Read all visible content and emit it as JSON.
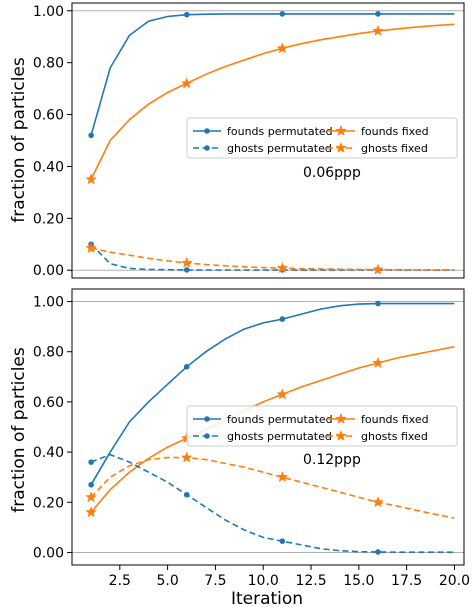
{
  "chart_data": [
    {
      "type": "line",
      "ylabel": "fraction of particles",
      "xlabel": "",
      "annotation": "0.06ppp",
      "xlim": [
        0.0,
        20.5
      ],
      "ylim": [
        -0.03,
        1.03
      ],
      "yticks": [
        0.0,
        0.2,
        0.4,
        0.6,
        0.8,
        1.0
      ],
      "ytick_labels": [
        "0.00",
        "0.20",
        "0.40",
        "0.60",
        "0.80",
        "1.00"
      ],
      "hlines": [
        0.0,
        1.0
      ],
      "grid": false,
      "legend": "center-right",
      "series": [
        {
          "name": "founds permutated",
          "color": "#1f77b4",
          "linestyle": "solid",
          "marker": "dot",
          "x": [
            1,
            2,
            3,
            4,
            5,
            6,
            7,
            8,
            9,
            10,
            11,
            12,
            13,
            14,
            15,
            16,
            17,
            18,
            19,
            20
          ],
          "y": [
            0.52,
            0.78,
            0.905,
            0.96,
            0.978,
            0.985,
            0.987,
            0.988,
            0.988,
            0.988,
            0.988,
            0.988,
            0.988,
            0.988,
            0.988,
            0.988,
            0.988,
            0.988,
            0.988,
            0.988
          ],
          "markers_at": [
            1,
            6,
            11,
            16
          ]
        },
        {
          "name": "founds fixed",
          "color": "#ff7f0e",
          "linestyle": "solid",
          "marker": "star",
          "x": [
            1,
            2,
            3,
            4,
            5,
            6,
            7,
            8,
            9,
            10,
            11,
            12,
            13,
            14,
            15,
            16,
            17,
            18,
            19,
            20
          ],
          "y": [
            0.35,
            0.5,
            0.58,
            0.64,
            0.685,
            0.72,
            0.755,
            0.785,
            0.81,
            0.835,
            0.855,
            0.873,
            0.888,
            0.9,
            0.912,
            0.922,
            0.93,
            0.937,
            0.943,
            0.948
          ],
          "markers_at": [
            1,
            6,
            11,
            16
          ]
        },
        {
          "name": "ghosts permutated",
          "color": "#1f77b4",
          "linestyle": "dashed",
          "marker": "dot",
          "x": [
            1,
            2,
            3,
            4,
            5,
            6,
            7,
            8,
            9,
            10,
            11,
            12,
            13,
            14,
            15,
            16,
            17,
            18,
            19,
            20
          ],
          "y": [
            0.1,
            0.025,
            0.007,
            0.003,
            0.002,
            0.001,
            0.001,
            0.001,
            0.001,
            0.001,
            0.001,
            0.001,
            0.001,
            0.001,
            0.001,
            0.001,
            0.001,
            0.001,
            0.001,
            0.001
          ],
          "markers_at": [
            1,
            6,
            11,
            16
          ]
        },
        {
          "name": "ghosts fixed",
          "color": "#ff7f0e",
          "linestyle": "dashed",
          "marker": "star",
          "x": [
            1,
            2,
            3,
            4,
            5,
            6,
            7,
            8,
            9,
            10,
            11,
            12,
            13,
            14,
            15,
            16,
            17,
            18,
            19,
            20
          ],
          "y": [
            0.085,
            0.07,
            0.058,
            0.046,
            0.036,
            0.028,
            0.022,
            0.017,
            0.013,
            0.01,
            0.008,
            0.006,
            0.005,
            0.004,
            0.003,
            0.002,
            0.002,
            0.001,
            0.001,
            0.001
          ],
          "markers_at": [
            1,
            6,
            11,
            16
          ]
        }
      ]
    },
    {
      "type": "line",
      "ylabel": "fraction of particles",
      "xlabel": "Iteration",
      "annotation": "0.12ppp",
      "xlim": [
        0.0,
        20.5
      ],
      "ylim": [
        -0.05,
        1.05
      ],
      "yticks": [
        0.0,
        0.2,
        0.4,
        0.6,
        0.8,
        1.0
      ],
      "ytick_labels": [
        "0.00",
        "0.20",
        "0.40",
        "0.60",
        "0.80",
        "1.00"
      ],
      "xticks": [
        2.5,
        5.0,
        7.5,
        10.0,
        12.5,
        15.0,
        17.5,
        20.0
      ],
      "xtick_labels": [
        "2.5",
        "5.0",
        "7.5",
        "10.0",
        "12.5",
        "15.0",
        "17.5",
        "20.0"
      ],
      "hlines": [
        0.0,
        1.0
      ],
      "grid": false,
      "legend": "center-right",
      "series": [
        {
          "name": "founds permutated",
          "color": "#1f77b4",
          "linestyle": "solid",
          "marker": "dot",
          "x": [
            1,
            2,
            3,
            4,
            5,
            6,
            7,
            8,
            9,
            10,
            11,
            12,
            13,
            14,
            15,
            16,
            17,
            18,
            19,
            20
          ],
          "y": [
            0.27,
            0.4,
            0.52,
            0.6,
            0.67,
            0.74,
            0.8,
            0.85,
            0.89,
            0.915,
            0.93,
            0.95,
            0.97,
            0.983,
            0.99,
            0.992,
            0.992,
            0.992,
            0.992,
            0.992
          ],
          "markers_at": [
            1,
            6,
            11,
            16
          ]
        },
        {
          "name": "founds fixed",
          "color": "#ff7f0e",
          "linestyle": "solid",
          "marker": "star",
          "x": [
            1,
            2,
            3,
            4,
            5,
            6,
            7,
            8,
            9,
            10,
            11,
            12,
            13,
            14,
            15,
            16,
            17,
            18,
            19,
            20
          ],
          "y": [
            0.16,
            0.25,
            0.32,
            0.375,
            0.42,
            0.455,
            0.49,
            0.525,
            0.565,
            0.6,
            0.63,
            0.66,
            0.685,
            0.71,
            0.735,
            0.755,
            0.775,
            0.79,
            0.805,
            0.82
          ],
          "markers_at": [
            1,
            6,
            11,
            16
          ]
        },
        {
          "name": "ghosts permutated",
          "color": "#1f77b4",
          "linestyle": "dashed",
          "marker": "dot",
          "x": [
            1,
            2,
            3,
            4,
            5,
            6,
            7,
            8,
            9,
            10,
            11,
            12,
            13,
            14,
            15,
            16,
            17,
            18,
            19,
            20
          ],
          "y": [
            0.36,
            0.39,
            0.36,
            0.32,
            0.28,
            0.23,
            0.18,
            0.13,
            0.09,
            0.06,
            0.045,
            0.03,
            0.015,
            0.007,
            0.003,
            0.002,
            0.001,
            0.001,
            0.001,
            0.001
          ],
          "markers_at": [
            1,
            6,
            11,
            16
          ]
        },
        {
          "name": "ghosts fixed",
          "color": "#ff7f0e",
          "linestyle": "dashed",
          "marker": "star",
          "x": [
            1,
            2,
            3,
            4,
            5,
            6,
            7,
            8,
            9,
            10,
            11,
            12,
            13,
            14,
            15,
            16,
            17,
            18,
            19,
            20
          ],
          "y": [
            0.22,
            0.3,
            0.345,
            0.37,
            0.378,
            0.378,
            0.37,
            0.355,
            0.34,
            0.32,
            0.3,
            0.28,
            0.26,
            0.24,
            0.22,
            0.2,
            0.185,
            0.168,
            0.152,
            0.137
          ],
          "markers_at": [
            1,
            6,
            11,
            16
          ]
        }
      ]
    }
  ]
}
